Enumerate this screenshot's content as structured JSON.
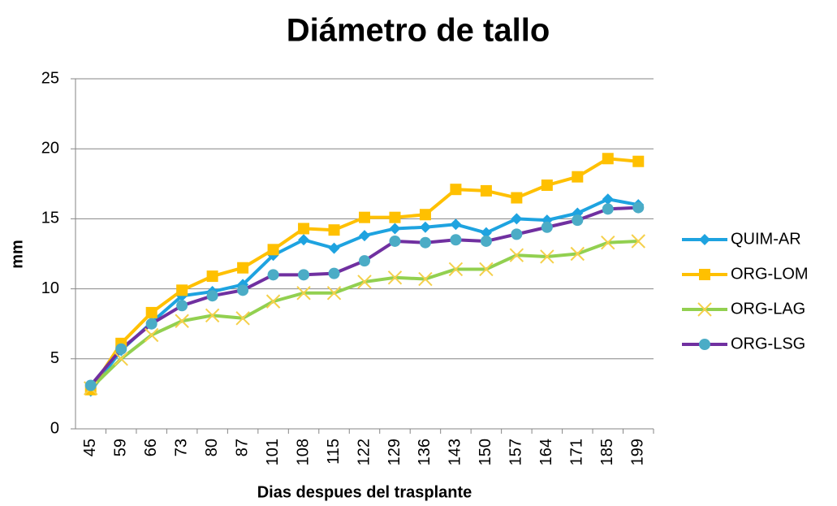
{
  "chart_data": {
    "type": "line",
    "title": "Diámetro de tallo",
    "x_label": "Dias despues del trasplante",
    "y_label": "mm",
    "categories": [
      "45",
      "59",
      "66",
      "73",
      "80",
      "87",
      "101",
      "108",
      "115",
      "122",
      "129",
      "136",
      "143",
      "150",
      "157",
      "164",
      "171",
      "185",
      "199"
    ],
    "series": [
      {
        "name": "QUIM-AR",
        "color": "#1ea3e0",
        "marker": "diamond",
        "marker_color": "#1ea3e0",
        "values": [
          2.7,
          5.6,
          7.6,
          9.5,
          9.8,
          10.3,
          12.4,
          13.5,
          12.9,
          13.8,
          14.3,
          14.4,
          14.6,
          14.0,
          15.0,
          14.9,
          15.4,
          16.4,
          16.0
        ]
      },
      {
        "name": "ORG-LOM",
        "color": "#ffc000",
        "marker": "square",
        "marker_color": "#ffc000",
        "values": [
          2.8,
          6.1,
          8.3,
          9.9,
          10.9,
          11.5,
          12.8,
          14.3,
          14.2,
          15.1,
          15.1,
          15.3,
          17.1,
          17.0,
          16.5,
          17.4,
          18.0,
          19.3,
          19.1
        ]
      },
      {
        "name": "ORG-LAG",
        "color": "#92d050",
        "marker": "x",
        "marker_color": "#f5d04a",
        "values": [
          2.9,
          5.0,
          6.7,
          7.7,
          8.1,
          7.9,
          9.1,
          9.7,
          9.7,
          10.5,
          10.8,
          10.7,
          11.4,
          11.4,
          12.4,
          12.3,
          12.5,
          13.3,
          13.4
        ]
      },
      {
        "name": "ORG-LSG",
        "color": "#7030a0",
        "marker": "circle",
        "marker_color": "#4bacc6",
        "values": [
          3.1,
          5.7,
          7.5,
          8.8,
          9.5,
          9.9,
          11.0,
          11.0,
          11.1,
          12.0,
          13.4,
          13.3,
          13.5,
          13.4,
          13.9,
          14.4,
          14.9,
          15.7,
          15.8
        ]
      }
    ],
    "ylim": [
      0,
      25
    ],
    "yticks": [
      0,
      5,
      10,
      15,
      20,
      25
    ],
    "grid": true,
    "legend": "right"
  }
}
